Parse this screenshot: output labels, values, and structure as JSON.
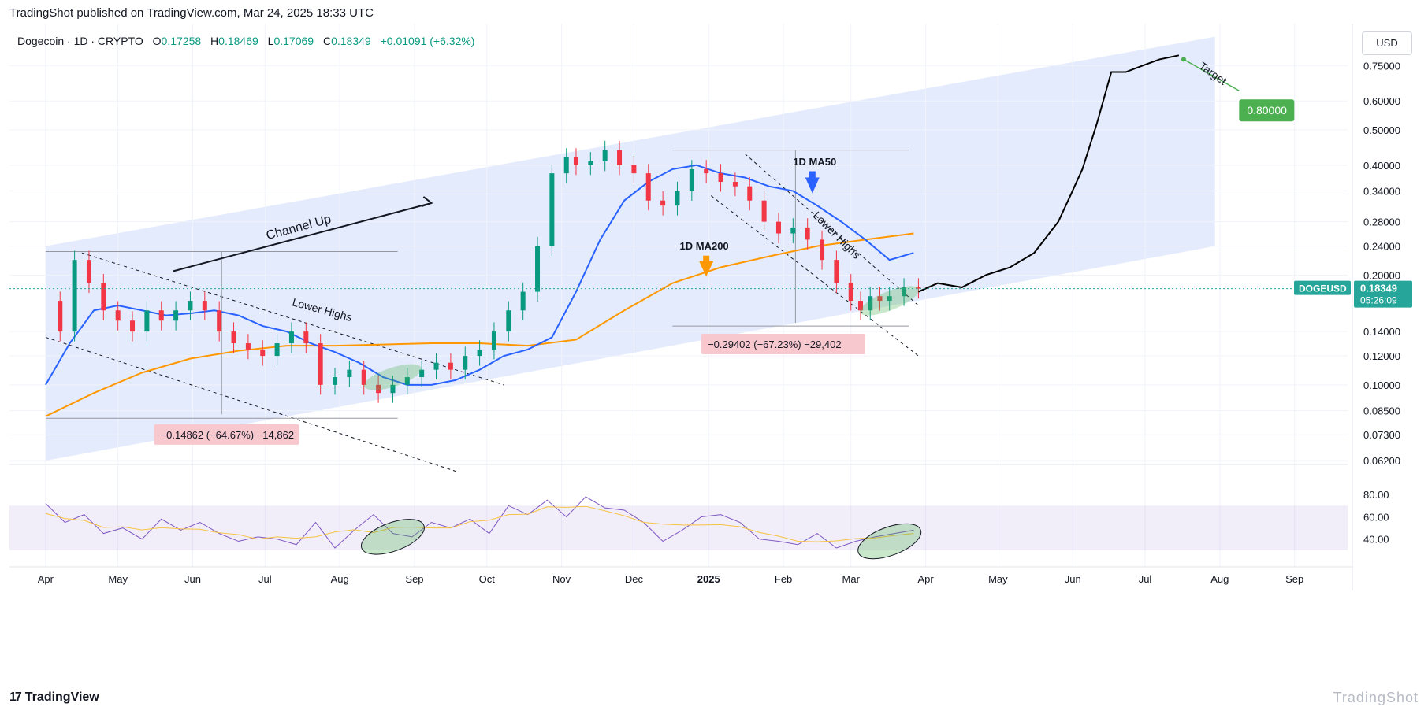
{
  "header": {
    "published_by": "TradingShot published on TradingView.com, Mar 24, 2025 18:33 UTC"
  },
  "legend": {
    "symbol": "Dogecoin · 1D · CRYPTO",
    "open_label": "O",
    "open": "0.17258",
    "high_label": "H",
    "high": "0.18469",
    "low_label": "L",
    "low": "0.17069",
    "close_label": "C",
    "close": "0.18349",
    "change": "+0.01091 (+6.32%)"
  },
  "currency_button": "USD",
  "footer": {
    "brand": "TradingView",
    "watermark": "TradingShot"
  },
  "colors": {
    "channel_fill": "#dbe4fb",
    "ma50": "#2962ff",
    "ma200": "#ff9800",
    "up_candle": "#089981",
    "down_candle": "#f23645",
    "target_box": "#4caf50",
    "ticker_box": "#26a69a",
    "drop_box": "#f8c8cf",
    "rsi_line": "#7e57c2",
    "rsi_ma": "#f6c343"
  },
  "chart_data": {
    "type": "line",
    "title": "Dogecoin · 1D · CRYPTO",
    "currency": "USD",
    "y_scale": "log",
    "y_tick_labels": [
      "0.75000",
      "0.60000",
      "0.50000",
      "0.40000",
      "0.34000",
      "0.28000",
      "0.24000",
      "0.20000",
      "0.14000",
      "0.12000",
      "0.10000",
      "0.08500",
      "0.07300",
      "0.06200"
    ],
    "y_ticks": [
      0.75,
      0.6,
      0.5,
      0.4,
      0.34,
      0.28,
      0.24,
      0.2,
      0.14,
      0.12,
      0.1,
      0.085,
      0.073,
      0.062
    ],
    "x_labels": [
      "Apr",
      "May",
      "Jun",
      "Jul",
      "Aug",
      "Sep",
      "Oct",
      "Nov",
      "Dec",
      "2025",
      "Feb",
      "Mar",
      "Apr",
      "May",
      "Jun",
      "Jul",
      "Aug",
      "Sep"
    ],
    "x_label_day": [
      0,
      30,
      61,
      91,
      122,
      153,
      183,
      214,
      244,
      275,
      306,
      334,
      365,
      395,
      426,
      456,
      487,
      518
    ],
    "start_date": "2024-03-08",
    "price_series": {
      "name": "DOGEUSD",
      "day": [
        0,
        6,
        12,
        18,
        24,
        30,
        36,
        42,
        48,
        54,
        60,
        66,
        72,
        78,
        84,
        90,
        96,
        102,
        108,
        114,
        120,
        126,
        132,
        138,
        144,
        150,
        156,
        162,
        168,
        174,
        180,
        186,
        192,
        198,
        204,
        210,
        216,
        220,
        226,
        232,
        238,
        244,
        250,
        256,
        262,
        268,
        274,
        280,
        286,
        292,
        298,
        304,
        310,
        316,
        322,
        328,
        334,
        338,
        342,
        346,
        350,
        356,
        362
      ],
      "close": [
        0.17,
        0.14,
        0.22,
        0.19,
        0.16,
        0.15,
        0.14,
        0.16,
        0.15,
        0.16,
        0.17,
        0.16,
        0.14,
        0.13,
        0.125,
        0.12,
        0.13,
        0.14,
        0.13,
        0.1,
        0.105,
        0.11,
        0.1,
        0.095,
        0.1,
        0.105,
        0.11,
        0.115,
        0.11,
        0.12,
        0.125,
        0.14,
        0.16,
        0.18,
        0.24,
        0.38,
        0.42,
        0.4,
        0.41,
        0.44,
        0.4,
        0.38,
        0.32,
        0.31,
        0.34,
        0.39,
        0.38,
        0.36,
        0.35,
        0.32,
        0.28,
        0.26,
        0.27,
        0.25,
        0.22,
        0.19,
        0.17,
        0.16,
        0.175,
        0.17,
        0.175,
        0.185,
        0.18349
      ]
    },
    "ma50": {
      "name": "1D MA50",
      "day": [
        0,
        10,
        20,
        30,
        40,
        50,
        60,
        70,
        80,
        90,
        100,
        110,
        120,
        130,
        140,
        150,
        160,
        170,
        180,
        190,
        200,
        210,
        220,
        230,
        240,
        250,
        260,
        270,
        280,
        290,
        300,
        310,
        320,
        330,
        340,
        350,
        360
      ],
      "value": [
        0.1,
        0.13,
        0.16,
        0.165,
        0.16,
        0.155,
        0.157,
        0.16,
        0.155,
        0.145,
        0.14,
        0.13,
        0.123,
        0.115,
        0.105,
        0.1,
        0.1,
        0.103,
        0.11,
        0.12,
        0.125,
        0.135,
        0.18,
        0.25,
        0.32,
        0.36,
        0.39,
        0.4,
        0.38,
        0.37,
        0.35,
        0.34,
        0.31,
        0.28,
        0.25,
        0.22,
        0.23
      ]
    },
    "ma200": {
      "name": "1D MA200",
      "day": [
        0,
        20,
        40,
        60,
        80,
        100,
        120,
        140,
        160,
        180,
        200,
        220,
        240,
        260,
        280,
        300,
        320,
        340,
        360
      ],
      "value": [
        0.082,
        0.095,
        0.108,
        0.118,
        0.124,
        0.128,
        0.128,
        0.129,
        0.13,
        0.13,
        0.128,
        0.133,
        0.16,
        0.19,
        0.21,
        0.225,
        0.24,
        0.25,
        0.26
      ]
    },
    "projection": {
      "day": [
        362,
        370,
        380,
        390,
        400,
        410,
        420,
        425,
        430,
        436,
        442,
        448,
        455,
        462,
        470
      ],
      "value": [
        0.18,
        0.19,
        0.185,
        0.2,
        0.21,
        0.23,
        0.28,
        0.33,
        0.39,
        0.52,
        0.72,
        0.72,
        0.75,
        0.78,
        0.8
      ]
    },
    "target": 0.8,
    "target_label": "0.80000",
    "target_text": "Target",
    "last_price_label": "0.18349",
    "last_price_ticker": "DOGEUSD",
    "countdown": "05:26:09",
    "annotations": {
      "channel_up": "Channel Up",
      "lower_highs_1": "Lower Highs",
      "lower_highs_2": "Lower Highs",
      "ma50_label": "1D MA50",
      "ma200_label": "1D MA200",
      "drop_1": "−0.14862 (−64.67%) −14,862",
      "drop_2": "−0.29402 (−67.23%) −29,402"
    },
    "rsi": {
      "tick_labels": [
        "80.00",
        "60.00",
        "40.00"
      ],
      "ticks": [
        80,
        60,
        40
      ],
      "band": [
        30,
        70
      ],
      "day": [
        0,
        8,
        16,
        24,
        32,
        40,
        48,
        56,
        64,
        72,
        80,
        88,
        96,
        104,
        112,
        120,
        128,
        136,
        144,
        152,
        160,
        168,
        176,
        184,
        192,
        200,
        208,
        216,
        224,
        232,
        240,
        248,
        256,
        264,
        272,
        280,
        288,
        296,
        304,
        312,
        320,
        328,
        336,
        344,
        352,
        360
      ],
      "value": [
        72,
        55,
        62,
        45,
        50,
        40,
        58,
        48,
        55,
        45,
        38,
        42,
        40,
        35,
        55,
        32,
        48,
        62,
        45,
        42,
        55,
        50,
        58,
        45,
        70,
        62,
        75,
        60,
        78,
        68,
        66,
        55,
        38,
        48,
        60,
        62,
        55,
        40,
        38,
        35,
        45,
        32,
        38,
        42,
        45,
        48
      ]
    }
  }
}
